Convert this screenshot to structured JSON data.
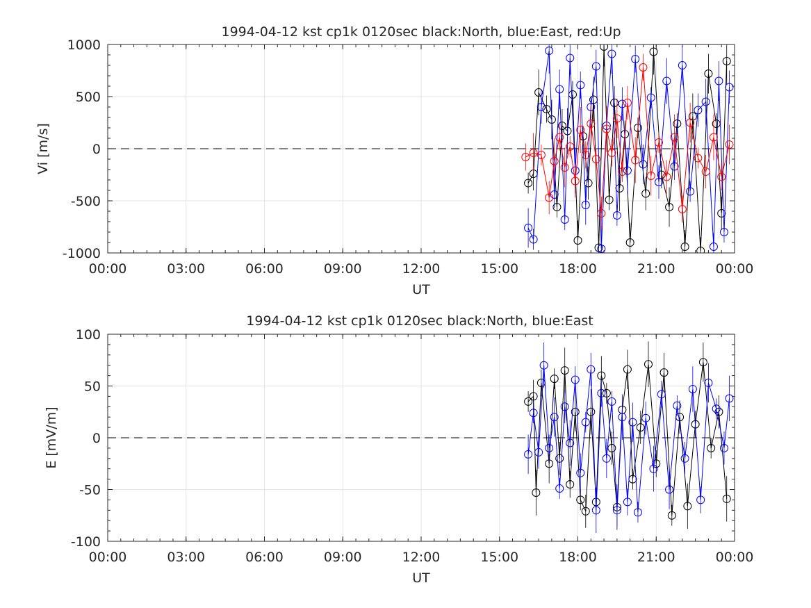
{
  "chart_data": [
    {
      "type": "line",
      "title": "1994-04-12 kst cp1k 0120sec black:North, blue:East, red:Up",
      "xlabel": "UT",
      "ylabel": "Vi [m/s]",
      "xlim": [
        0,
        24
      ],
      "ylim": [
        -1000,
        1000
      ],
      "x_ticks": [
        0,
        3,
        6,
        9,
        12,
        15,
        18,
        21,
        24
      ],
      "x_tick_labels": [
        "00:00",
        "03:00",
        "06:00",
        "09:00",
        "12:00",
        "15:00",
        "18:00",
        "21:00",
        "00:00"
      ],
      "y_ticks": [
        1000,
        500,
        0,
        -500,
        -1000
      ],
      "y_tick_labels": [
        "1000",
        "500",
        "0",
        "-500",
        "-1000"
      ],
      "grid": true,
      "marker": "circle",
      "zero_line": "dashed",
      "colors": {
        "North": "#000000",
        "East": "#0000ff",
        "Up": "#ff0000"
      },
      "series": [
        {
          "name": "North",
          "color": "#000000",
          "x": [
            16.1,
            16.3,
            16.5,
            16.8,
            17.0,
            17.2,
            17.4,
            17.6,
            17.8,
            18.0,
            18.2,
            18.4,
            18.6,
            18.8,
            19.0,
            19.2,
            19.4,
            19.6,
            19.8,
            20.0,
            20.3,
            20.6,
            20.9,
            21.2,
            21.5,
            21.8,
            22.1,
            22.4,
            22.7,
            23.0,
            23.3,
            23.5,
            23.7
          ],
          "y": [
            -330,
            -240,
            540,
            380,
            280,
            -560,
            220,
            170,
            520,
            -880,
            120,
            -330,
            470,
            -950,
            980,
            -490,
            440,
            -380,
            140,
            -900,
            200,
            -430,
            930,
            -250,
            -560,
            240,
            -940,
            310,
            -980,
            720,
            240,
            -620,
            840
          ]
        },
        {
          "name": "East",
          "color": "#0000ff",
          "x": [
            16.1,
            16.3,
            16.6,
            16.9,
            17.1,
            17.3,
            17.5,
            17.7,
            17.9,
            18.1,
            18.3,
            18.5,
            18.7,
            18.9,
            19.1,
            19.3,
            19.5,
            19.7,
            19.9,
            20.2,
            20.5,
            20.8,
            21.1,
            21.4,
            21.7,
            22.0,
            22.3,
            22.6,
            22.9,
            23.2,
            23.4,
            23.6,
            23.8
          ],
          "y": [
            -760,
            -870,
            400,
            940,
            -440,
            570,
            -680,
            870,
            -210,
            610,
            -540,
            400,
            790,
            -960,
            220,
            910,
            -640,
            430,
            -210,
            860,
            -150,
            490,
            -320,
            650,
            -170,
            800,
            -410,
            370,
            450,
            -940,
            650,
            -800,
            590
          ]
        },
        {
          "name": "Up",
          "color": "#ff0000",
          "x": [
            16.0,
            16.3,
            16.6,
            16.9,
            17.1,
            17.3,
            17.5,
            17.7,
            17.9,
            18.1,
            18.3,
            18.5,
            18.7,
            18.9,
            19.1,
            19.3,
            19.5,
            19.7,
            19.9,
            20.2,
            20.5,
            20.8,
            21.1,
            21.4,
            21.7,
            22.0,
            22.3,
            22.6,
            22.9,
            23.2,
            23.5,
            23.8
          ],
          "y": [
            -80,
            -40,
            -60,
            -470,
            -120,
            110,
            -180,
            20,
            -310,
            180,
            -60,
            240,
            -100,
            -620,
            190,
            -40,
            290,
            -220,
            440,
            -110,
            780,
            -260,
            60,
            -270,
            110,
            -580,
            250,
            -90,
            -220,
            110,
            -270,
            40
          ]
        }
      ]
    },
    {
      "type": "line",
      "title": "1994-04-12 kst cp1k 0120sec black:North, blue:East",
      "xlabel": "UT",
      "ylabel": "E [mV/m]",
      "xlim": [
        0,
        24
      ],
      "ylim": [
        -100,
        100
      ],
      "x_ticks": [
        0,
        3,
        6,
        9,
        12,
        15,
        18,
        21,
        24
      ],
      "x_tick_labels": [
        "00:00",
        "03:00",
        "06:00",
        "09:00",
        "12:00",
        "15:00",
        "18:00",
        "21:00",
        "00:00"
      ],
      "y_ticks": [
        100,
        50,
        0,
        -50,
        -100
      ],
      "y_tick_labels": [
        "100",
        "50",
        "0",
        "-50",
        "-100"
      ],
      "grid": true,
      "marker": "circle",
      "zero_line": "dashed",
      "colors": {
        "North": "#000000",
        "East": "#0000ff"
      },
      "series": [
        {
          "name": "North",
          "color": "#000000",
          "x": [
            16.1,
            16.3,
            16.4,
            16.6,
            16.9,
            17.1,
            17.3,
            17.5,
            17.7,
            17.9,
            18.1,
            18.3,
            18.5,
            18.7,
            18.9,
            19.1,
            19.3,
            19.5,
            19.7,
            19.9,
            20.1,
            20.4,
            20.7,
            21.0,
            21.3,
            21.6,
            21.9,
            22.2,
            22.5,
            22.8,
            23.1,
            23.4,
            23.7
          ],
          "y": [
            35,
            40,
            -53,
            53,
            -25,
            57,
            -20,
            65,
            -45,
            25,
            -60,
            -71,
            25,
            -62,
            60,
            43,
            -10,
            -67,
            27,
            66,
            -40,
            10,
            71,
            -25,
            63,
            -75,
            20,
            -66,
            13,
            73,
            -10,
            25,
            -59
          ]
        },
        {
          "name": "East",
          "color": "#0000ff",
          "x": [
            16.1,
            16.3,
            16.5,
            16.7,
            16.9,
            17.1,
            17.3,
            17.5,
            17.7,
            17.9,
            18.1,
            18.3,
            18.5,
            18.7,
            18.9,
            19.1,
            19.3,
            19.5,
            19.7,
            19.9,
            20.1,
            20.3,
            20.6,
            20.9,
            21.2,
            21.5,
            21.8,
            22.1,
            22.4,
            22.7,
            23.0,
            23.3,
            23.6,
            23.8
          ],
          "y": [
            -16,
            24,
            -14,
            70,
            -10,
            20,
            -49,
            30,
            -5,
            56,
            -34,
            15,
            66,
            -70,
            43,
            -20,
            35,
            -70,
            20,
            -62,
            15,
            -72,
            19,
            -30,
            42,
            -50,
            31,
            -20,
            47,
            -60,
            53,
            28,
            -10,
            38
          ]
        }
      ]
    }
  ]
}
